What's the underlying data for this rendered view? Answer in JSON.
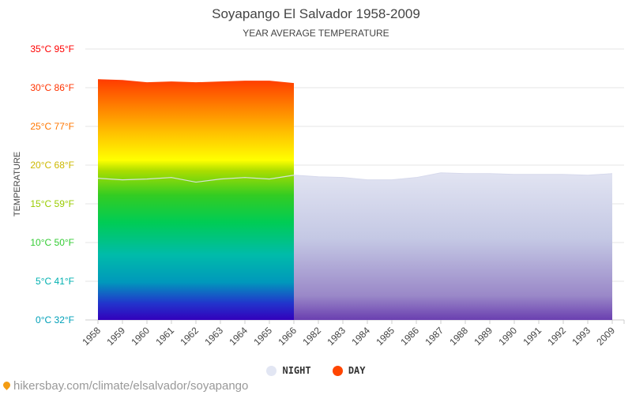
{
  "header": {
    "title": "Soyapango El Salvador 1958-2009",
    "subtitle": "YEAR AVERAGE TEMPERATURE"
  },
  "chart_data": {
    "type": "area",
    "title": "Soyapango El Salvador 1958-2009",
    "subtitle": "YEAR AVERAGE TEMPERATURE",
    "ylabel": "TEMPERATURE",
    "xlabel": "",
    "ylim": [
      0,
      35
    ],
    "grid": true,
    "legend_position": "bottom",
    "y_ticks": [
      {
        "value": 0,
        "label": "0°C 32°F",
        "color": "#00a0b8"
      },
      {
        "value": 5,
        "label": "5°C 41°F",
        "color": "#00b0b0"
      },
      {
        "value": 10,
        "label": "10°C 50°F",
        "color": "#33cc33"
      },
      {
        "value": 15,
        "label": "15°C 59°F",
        "color": "#99cc00"
      },
      {
        "value": 20,
        "label": "20°C 68°F",
        "color": "#ccb800"
      },
      {
        "value": 25,
        "label": "25°C 77°F",
        "color": "#ff7700"
      },
      {
        "value": 30,
        "label": "30°C 86°F",
        "color": "#ff3300"
      },
      {
        "value": 35,
        "label": "35°C 95°F",
        "color": "#ff0000"
      }
    ],
    "categories": [
      "1958",
      "1959",
      "1960",
      "1961",
      "1962",
      "1963",
      "1964",
      "1965",
      "1966",
      "1982",
      "1983",
      "1984",
      "1985",
      "1986",
      "1987",
      "1988",
      "1989",
      "1990",
      "1991",
      "1992",
      "1993",
      "2009"
    ],
    "series": [
      {
        "name": "NIGHT",
        "color": "#e2e6f3",
        "values": [
          18.3,
          18.1,
          18.2,
          18.4,
          17.8,
          18.2,
          18.4,
          18.2,
          18.7,
          18.5,
          18.4,
          18.1,
          18.1,
          18.4,
          19.0,
          18.9,
          18.9,
          18.8,
          18.8,
          18.8,
          18.7,
          18.9
        ]
      },
      {
        "name": "DAY",
        "color": "#ff4500",
        "values": [
          31.1,
          31.0,
          30.7,
          30.8,
          30.7,
          30.8,
          30.9,
          30.9,
          30.6,
          null,
          null,
          null,
          null,
          null,
          null,
          null,
          null,
          null,
          null,
          null,
          null,
          null
        ]
      }
    ]
  },
  "legend": {
    "night_label": "NIGHT",
    "day_label": "DAY",
    "night_color": "#e2e6f3",
    "day_color": "#ff4500"
  },
  "footer": {
    "source": "hikersbay.com/climate/elsalvador/soyapango"
  }
}
